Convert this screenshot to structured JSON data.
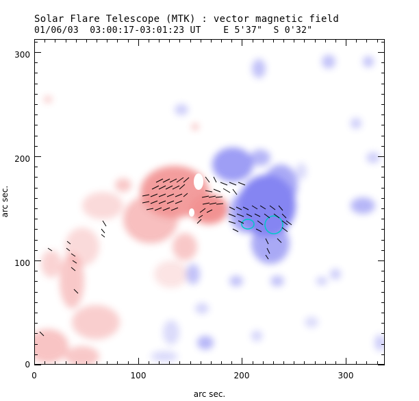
{
  "header": {
    "title": "Solar Flare Telescope (MTK) : vector magnetic field",
    "subtitle": "01/06/03  03:00:17-03:01:23 UT    E 5'37\"  S 0'32\""
  },
  "axes": {
    "xlabel": "arc sec.",
    "ylabel": "arc sec.",
    "xlim": [
      0,
      340
    ],
    "ylim": [
      0,
      315
    ],
    "x_ticks": [
      "0",
      "100",
      "200",
      "300"
    ],
    "y_ticks": [
      "0",
      "100",
      "200",
      "300"
    ]
  },
  "colors": {
    "positive": "#f08080",
    "negative": "#6f6ff0",
    "contour": "#00c8c8",
    "vector": "#000000"
  },
  "contours": [
    {
      "x": 231,
      "y": 137,
      "rx": 8,
      "ry": 9
    },
    {
      "x": 207,
      "y": 136,
      "rx": 6,
      "ry": 5
    }
  ]
}
